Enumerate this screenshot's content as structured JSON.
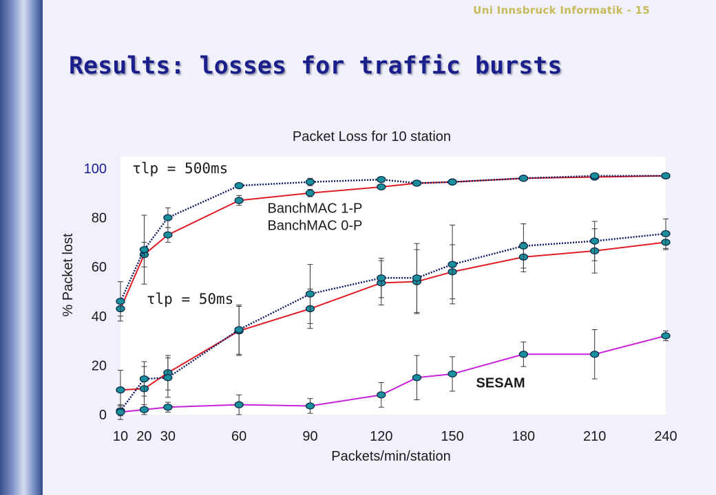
{
  "slide": {
    "header": "Uni Innsbruck Informatik - 15",
    "title": "Results: losses for traffic bursts"
  },
  "chart_data": {
    "type": "line",
    "title": "Packet Loss for 10 station",
    "xlabel": "Packets/min/station",
    "ylabel": "% Packet lost",
    "xlim": [
      10,
      240
    ],
    "ylim": [
      0,
      100
    ],
    "x_ticks": [
      10,
      20,
      30,
      60,
      90,
      120,
      150,
      180,
      210,
      240
    ],
    "y_ticks": [
      0,
      20,
      40,
      60,
      80,
      100
    ],
    "grid": false,
    "annotations": [
      {
        "text": "τlp = 500ms",
        "x": 15,
        "y": 98
      },
      {
        "text": "τlp = 50ms",
        "x": 21,
        "y": 45
      },
      {
        "text": "BanchMAC 1-P",
        "x": 72,
        "y": 82
      },
      {
        "text": "BanchMAC 0-P",
        "x": 72,
        "y": 75
      },
      {
        "text": "SESAM",
        "x": 160,
        "y": 11
      }
    ],
    "series": [
      {
        "color": "#e01b22",
        "dash": false,
        "x": [
          10,
          20,
          30,
          60,
          90,
          120,
          135,
          150,
          180,
          210,
          240
        ],
        "y": [
          43,
          65,
          73,
          87,
          90,
          92.5,
          94,
          94.5,
          96,
          96.5,
          97
        ],
        "err": [
          3,
          5,
          3,
          2,
          1.5,
          1,
          1,
          1,
          1,
          1,
          0.5
        ]
      },
      {
        "color": "#0a1660",
        "dash": true,
        "x": [
          10,
          20,
          30,
          60,
          90,
          120,
          135,
          150,
          180,
          210,
          240
        ],
        "y": [
          46,
          67,
          80,
          93,
          94.5,
          95.5,
          94,
          94.5,
          96,
          97,
          97
        ],
        "err": [
          8,
          14,
          4,
          1,
          1.5,
          1,
          1,
          1,
          1,
          1,
          0.5
        ]
      },
      {
        "color": "#e01b22",
        "dash": false,
        "x": [
          10,
          20,
          30,
          60,
          90,
          120,
          135,
          150,
          180,
          210,
          240
        ],
        "y": [
          10,
          10.5,
          17,
          34,
          43,
          53.5,
          54,
          58,
          64,
          66.5,
          70
        ],
        "err": [
          8,
          9,
          7,
          10,
          8,
          9,
          13,
          11,
          6,
          9,
          3
        ]
      },
      {
        "color": "#0a1660",
        "dash": true,
        "x": [
          10,
          20,
          30,
          60,
          90,
          120,
          135,
          150,
          180,
          210,
          240
        ],
        "y": [
          1.5,
          14.5,
          15,
          34.5,
          49,
          55.5,
          55.5,
          61,
          68.5,
          70.5,
          73.5
        ],
        "err": [
          2,
          7,
          8,
          10,
          12,
          8,
          14,
          16,
          9,
          8,
          6
        ]
      },
      {
        "color": "#c81fd8",
        "dash": false,
        "x": [
          10,
          20,
          30,
          60,
          90,
          120,
          135,
          150,
          180,
          210,
          240
        ],
        "y": [
          1,
          2,
          3,
          4,
          3.5,
          8,
          15,
          16.5,
          24.5,
          24.5,
          32
        ],
        "err": [
          3,
          2,
          2,
          4,
          3,
          5,
          9,
          7,
          5,
          10,
          2
        ]
      }
    ]
  }
}
